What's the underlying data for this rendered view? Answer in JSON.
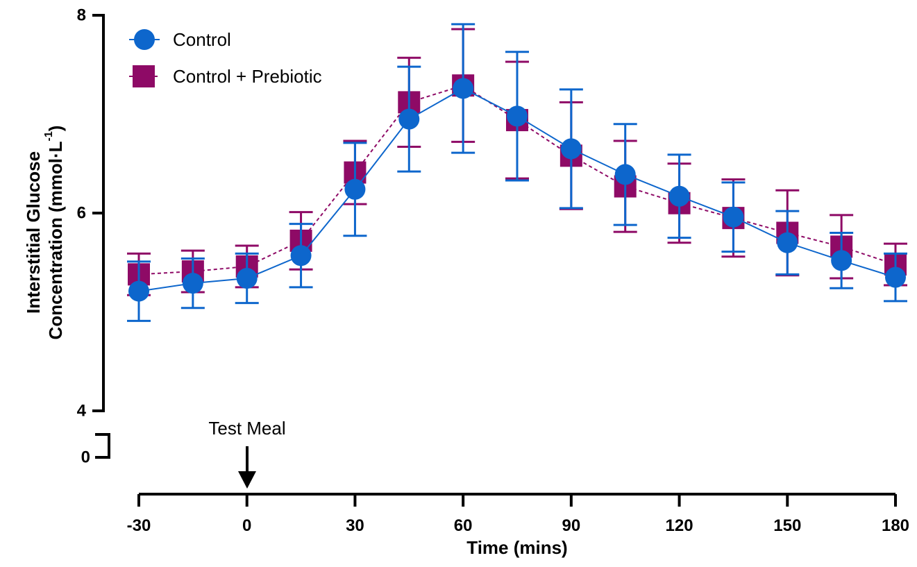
{
  "chart_data": {
    "type": "line",
    "title": "",
    "xlabel": "Time (mins)",
    "ylabel_line1": "Interstitial Glucose",
    "ylabel_line2": "Concentration (mmol·L",
    "ylabel_superscript": "-1",
    "ylabel_close": ")",
    "x": [
      -30,
      -15,
      0,
      15,
      30,
      45,
      60,
      75,
      90,
      105,
      120,
      135,
      150,
      165,
      180
    ],
    "x_ticks": [
      -30,
      0,
      30,
      60,
      90,
      120,
      150,
      180
    ],
    "x_tick_labels": [
      "-30",
      "0",
      "30",
      "60",
      "90",
      "120",
      "150",
      "180"
    ],
    "xlim": [
      -30,
      180
    ],
    "ylim": [
      4,
      8
    ],
    "y_break": true,
    "y_ticks": [
      4,
      6,
      8
    ],
    "y_tick_labels": [
      "4",
      "6",
      "8"
    ],
    "y_lower_segment_tick_label": "0",
    "grid": false,
    "legend_placement": "top-left",
    "series": [
      {
        "name": "Control",
        "marker": "circle",
        "line_style": "solid",
        "color": "#0D66CC",
        "values": [
          5.21,
          5.29,
          5.34,
          5.57,
          6.24,
          6.95,
          7.26,
          6.98,
          6.65,
          6.39,
          6.17,
          5.96,
          5.7,
          5.52,
          5.35
        ],
        "upper": [
          5.51,
          5.54,
          5.59,
          5.89,
          6.71,
          7.48,
          7.91,
          7.63,
          7.25,
          6.9,
          6.59,
          6.31,
          6.02,
          5.8,
          5.59
        ],
        "lower": [
          4.91,
          5.04,
          5.09,
          5.25,
          5.77,
          6.42,
          6.61,
          6.33,
          6.05,
          5.88,
          5.75,
          5.61,
          5.38,
          5.24,
          5.11
        ]
      },
      {
        "name": "Control + Prebiotic",
        "marker": "square",
        "line_style": "dashed",
        "color": "#8E0A66",
        "values": [
          5.38,
          5.41,
          5.46,
          5.72,
          6.41,
          7.12,
          7.29,
          6.94,
          6.58,
          6.27,
          6.1,
          5.95,
          5.8,
          5.66,
          5.48
        ],
        "upper": [
          5.59,
          5.62,
          5.67,
          6.01,
          6.73,
          7.57,
          7.86,
          7.53,
          7.12,
          6.73,
          6.5,
          6.34,
          6.23,
          5.98,
          5.69
        ],
        "lower": [
          5.17,
          5.2,
          5.25,
          5.43,
          6.09,
          6.67,
          6.72,
          6.35,
          6.04,
          5.81,
          5.7,
          5.56,
          5.37,
          5.34,
          5.27
        ]
      }
    ],
    "annotation": {
      "text": "Test Meal",
      "x": 0,
      "arrow": "down"
    }
  }
}
